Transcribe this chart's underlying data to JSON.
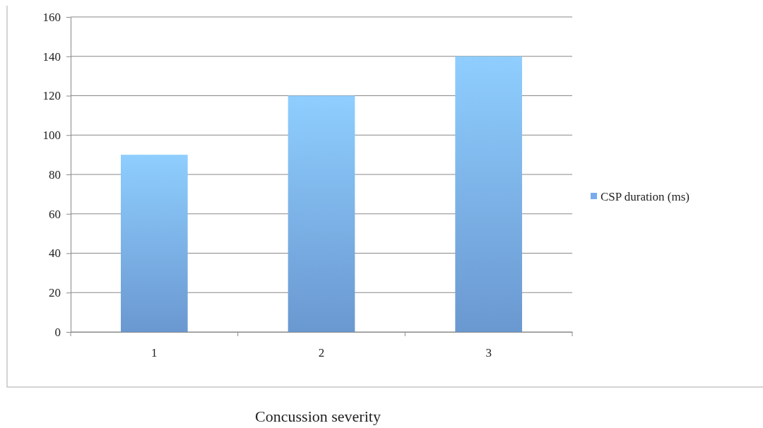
{
  "chart_data": {
    "type": "bar",
    "xlabel": "Concussion severity",
    "categories": [
      "1",
      "2",
      "3"
    ],
    "series": [
      {
        "name": "CSP duration (ms)",
        "color": "#78acec",
        "values": [
          90,
          120,
          140
        ]
      }
    ],
    "ylim": [
      0,
      160
    ],
    "yticks": [
      0,
      20,
      40,
      60,
      80,
      100,
      120,
      140,
      160
    ],
    "grid": "y",
    "legend": "right"
  }
}
